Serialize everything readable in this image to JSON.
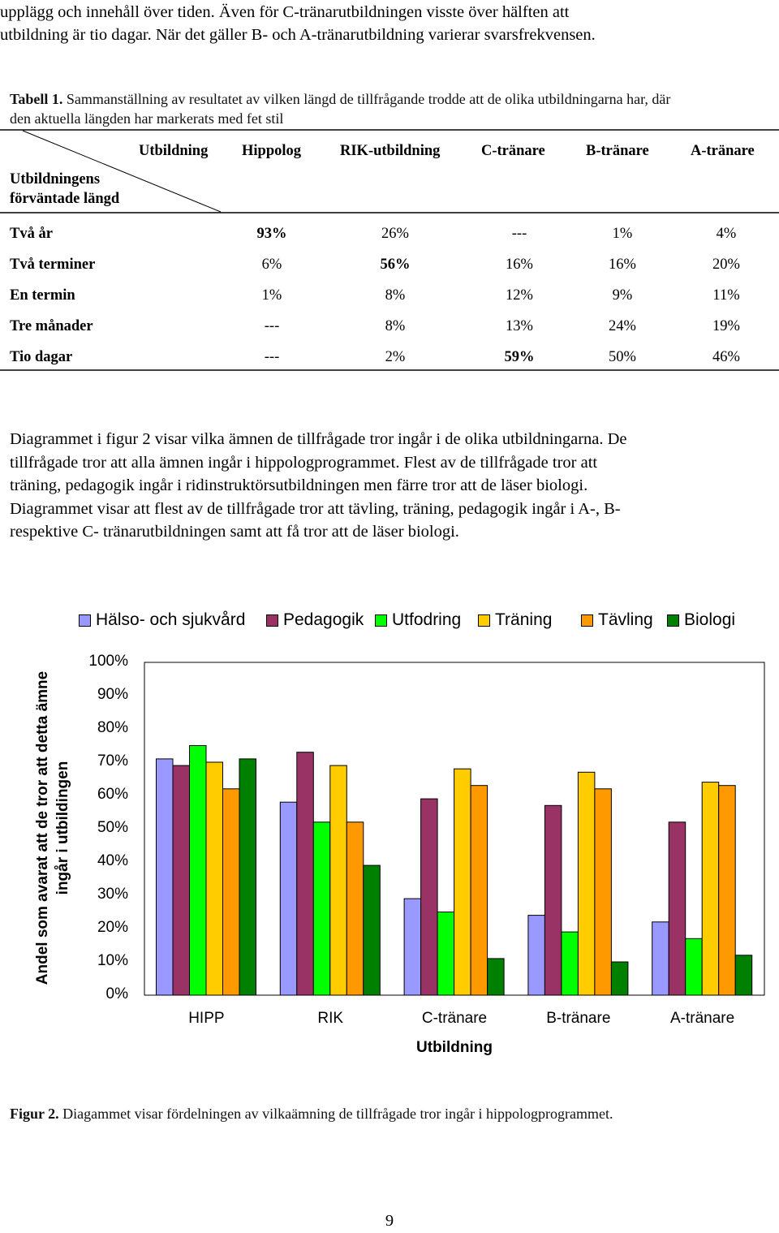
{
  "intro": {
    "line1": "upplägg och innehåll över tiden. Även för C-tränarutbildningen visste över hälften att",
    "line2": "utbildning är tio dagar. När det gäller B- och A-tränarutbildning varierar svarsfrekvensen."
  },
  "table_caption": {
    "label": "Tabell 1.",
    "line1_rest": " Sammanställning av resultatet av vilken längd de tillfrågande trodde att de olika utbildningarna har, där",
    "line2": "den aktuella längden har markerats med fet stil"
  },
  "table": {
    "corner_row_header_line1": "Utbildningens",
    "corner_row_header_line2": "förväntade längd",
    "corner_col_header": "Utbildning",
    "columns": [
      "Hippolog",
      "RIK-utbildning",
      "C-tränare",
      "B-tränare",
      "A-tränare"
    ],
    "rows": [
      {
        "label": "Två år",
        "cells": [
          "93%",
          "26%",
          "---",
          "1%",
          "4%"
        ],
        "bold": [
          true,
          false,
          false,
          false,
          false
        ]
      },
      {
        "label": "Två terminer",
        "cells": [
          "6%",
          "56%",
          "16%",
          "16%",
          "20%"
        ],
        "bold": [
          false,
          true,
          false,
          false,
          false
        ]
      },
      {
        "label": "En termin",
        "cells": [
          "1%",
          "8%",
          "12%",
          "9%",
          "11%"
        ],
        "bold": [
          false,
          false,
          false,
          false,
          false
        ]
      },
      {
        "label": "Tre månader",
        "cells": [
          "---",
          "8%",
          "13%",
          "24%",
          "19%"
        ],
        "bold": [
          false,
          false,
          false,
          false,
          false
        ]
      },
      {
        "label": "Tio dagar",
        "cells": [
          "---",
          "2%",
          "59%",
          "50%",
          "46%"
        ],
        "bold": [
          false,
          false,
          true,
          false,
          false
        ]
      }
    ]
  },
  "body_paragraph": {
    "lines": [
      "Diagrammet i figur 2 visar vilka ämnen de tillfrågade tror ingår i de olika utbildningarna. De",
      "tillfrågade tror att alla ämnen ingår i hippologprogrammet. Flest av de tillfrågade tror att",
      "träning, pedagogik ingår i ridinstruktörsutbildningen men färre tror att de läser biologi.",
      "Diagrammet visar att flest av de tillfrågade tror att tävling, träning, pedagogik ingår i A-, B-",
      "respektive C- tränarutbildningen samt att få tror att de läser biologi."
    ]
  },
  "chart_data": {
    "type": "bar",
    "title": "",
    "xlabel": "Utbildning",
    "ylabel_line1": "Andel som avarat att de tror att detta ämne",
    "ylabel_line2": "ingår i utbildingen",
    "categories": [
      "HIPP",
      "RIK",
      "C-tränare",
      "B-tränare",
      "A-tränare"
    ],
    "ylim": [
      0,
      100
    ],
    "yticks": [
      "0%",
      "10%",
      "20%",
      "30%",
      "40%",
      "50%",
      "60%",
      "70%",
      "80%",
      "90%",
      "100%"
    ],
    "grid": false,
    "legend_position": "top",
    "series": [
      {
        "name": "Hälso- och sjukvård",
        "color": "#9999ff",
        "values": [
          71,
          58,
          29,
          24,
          22
        ]
      },
      {
        "name": "Pedagogik",
        "color": "#993366",
        "values": [
          69,
          73,
          59,
          57,
          52
        ]
      },
      {
        "name": "Utfodring",
        "color": "#00ff00",
        "values": [
          75,
          52,
          25,
          19,
          17
        ]
      },
      {
        "name": "Träning",
        "color": "#ffcc00",
        "values": [
          70,
          69,
          68,
          67,
          64
        ]
      },
      {
        "name": "Tävling",
        "color": "#ff9900",
        "values": [
          62,
          52,
          63,
          62,
          63
        ]
      },
      {
        "name": "Biologi",
        "color": "#008000",
        "values": [
          71,
          39,
          11,
          10,
          12
        ]
      }
    ]
  },
  "figure_caption": {
    "label": "Figur 2.",
    "text": " Diagammet visar fördelningen av vilkaämning de tillfrågade tror ingår i hippologprogrammet."
  },
  "page_number": "9"
}
